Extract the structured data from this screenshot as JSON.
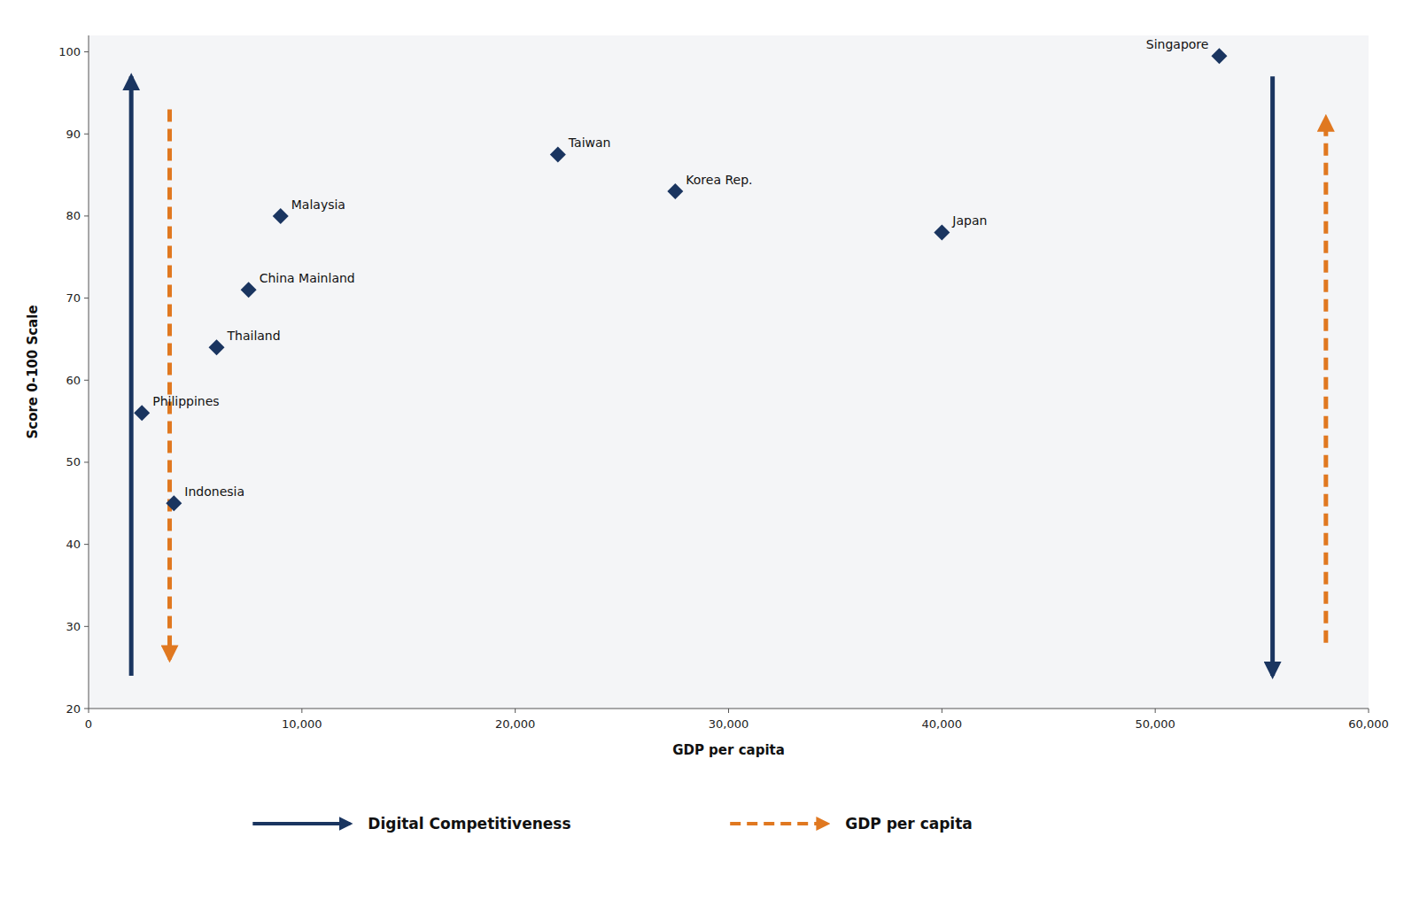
{
  "chart_data": {
    "type": "scatter",
    "x_label": "GDP per capita",
    "y_label": "Score 0-100 Scale",
    "series": [
      {
        "color": "#1a3560",
        "marker": "diamond",
        "labels": [
          "Singapore",
          "Taiwan",
          "Korea Rep.",
          "Japan",
          "Malaysia",
          "China Mainland",
          "Thailand",
          "Philippines",
          "Indonesia"
        ],
        "x": [
          53000,
          22000,
          27500,
          40000,
          9000,
          7500,
          6000,
          2500,
          4000
        ],
        "values": [
          99.5,
          87.5,
          83,
          78,
          80,
          71,
          64,
          56,
          45
        ]
      }
    ],
    "xlim": [
      0,
      60000
    ],
    "ylim": [
      20,
      102
    ],
    "xticks": [
      0,
      {
        "value": 10000,
        "label": "10,000"
      },
      {
        "value": 20000,
        "label": "20,000"
      },
      {
        "value": 30000,
        "label": "30,000"
      },
      {
        "value": 40000,
        "label": "40,000"
      },
      {
        "value": 50000,
        "label": "50,000"
      },
      {
        "value": 60000,
        "label": "60,000"
      }
    ],
    "yticks": [
      20,
      30,
      40,
      50,
      60,
      70,
      80,
      90,
      100
    ],
    "arrows": [
      {
        "name": "Digital Competitiveness",
        "color": "#1a3560",
        "line_style": "solid",
        "segments": [
          {
            "x": 2000,
            "y_start": 24,
            "y_end": 97
          },
          {
            "x": 55500,
            "y_start": 97,
            "y_end": 24
          }
        ]
      },
      {
        "name": "GDP per capita",
        "color": "#e07820",
        "line_style": "dashed",
        "segments": [
          {
            "x": 3800,
            "y_start": 93,
            "y_end": 26
          },
          {
            "x": 58000,
            "y_start": 28,
            "y_end": 92
          }
        ]
      }
    ],
    "grid": false,
    "legend": "bottom"
  }
}
